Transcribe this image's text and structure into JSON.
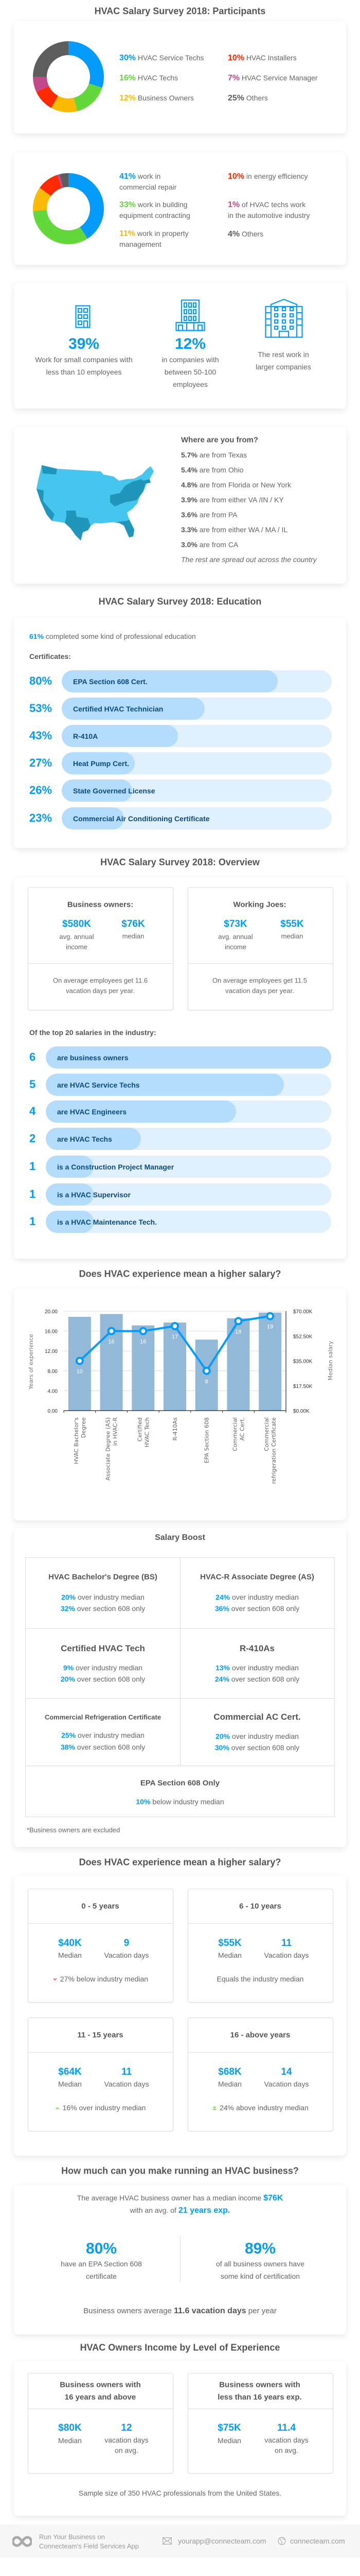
{
  "colors": {
    "blue": "#039cfd",
    "green": "#62d83b",
    "yellow": "#fbbb05",
    "red": "#ff2a00",
    "magenta": "#c2498a",
    "gray": "#5d5d5d",
    "map_light": "#45c6ef",
    "map_dark": "#2096ba",
    "bar_fill": "#b3dcfd",
    "bar_track": "#e0f0fe"
  },
  "participants": {
    "title": "HVAC Salary Survey 2018: Participants",
    "roles": [
      {
        "pct": "30%",
        "label": "HVAC Service Techs",
        "value": 30,
        "color": "#039cfd"
      },
      {
        "pct": "16%",
        "label": "HVAC Techs",
        "value": 16,
        "color": "#62d83b"
      },
      {
        "pct": "12%",
        "label": "Business Owners",
        "value": 12,
        "color": "#fbbb05"
      },
      {
        "pct": "10%",
        "label": "HVAC Installers",
        "value": 10,
        "color": "#ff2a00"
      },
      {
        "pct": "7%",
        "label": "HVAC Service Manager",
        "value": 7,
        "color": "#c2498a"
      },
      {
        "pct": "25%",
        "label": "Others",
        "value": 25,
        "color": "#5d5d5d"
      }
    ],
    "industries": [
      {
        "pct": "41%",
        "line1": "work in",
        "line2": "commercial repair",
        "value": 41,
        "color": "#039cfd"
      },
      {
        "pct": "33%",
        "line1": "work in building",
        "line2": "equipment contracting",
        "value": 33,
        "color": "#62d83b"
      },
      {
        "pct": "11%",
        "line1": "work in property",
        "line2": "management",
        "value": 11,
        "color": "#fbbb05"
      },
      {
        "pct": "10%",
        "line1": "in energy efficiency",
        "line2": "",
        "value": 10,
        "color": "#ff2a00"
      },
      {
        "pct": "1%",
        "line1": "of HVAC techs work",
        "line2": "in the automotive industry",
        "value": 1,
        "color": "#c2498a"
      },
      {
        "pct": "4%",
        "line1": "Others",
        "line2": "",
        "value": 4,
        "color": "#5d5d5d"
      }
    ],
    "company_size": [
      {
        "pct": "39%",
        "line1": "Work for small companies with",
        "line2": "less than 10 employees",
        "line3": "",
        "icon": "small-building-icon"
      },
      {
        "pct": "12%",
        "line1": "in companies with",
        "line2": "between 50-100",
        "line3": "employees",
        "icon": "office-building-icon"
      },
      {
        "pct": "",
        "line1": "The rest work in",
        "line2": "larger companies",
        "line3": "",
        "icon": "large-building-icon"
      }
    ],
    "location": {
      "heading": "Where are you from?",
      "items": [
        {
          "pct": "5.7%",
          "text": "are from Texas"
        },
        {
          "pct": "5.4%",
          "text": "are from Ohio"
        },
        {
          "pct": "4.8%",
          "text": "are from Florida or New York"
        },
        {
          "pct": "3.9%",
          "text": "are from either VA /IN / KY"
        },
        {
          "pct": "3.6%",
          "text": "are from PA"
        },
        {
          "pct": "3.3%",
          "text": "are from either WA / MA / IL"
        },
        {
          "pct": "3.0%",
          "text": "are from CA"
        }
      ],
      "note": "The rest are spread out across the country"
    }
  },
  "education": {
    "title": "HVAC Salary Survey 2018: Education",
    "intro_pct": "61%",
    "intro_text": "completed some kind of professional education",
    "cert_heading": "Certificates:",
    "certificates": [
      {
        "pct": "80%",
        "label": "EPA Section 608 Cert."
      },
      {
        "pct": "53%",
        "label": "Certified HVAC Technician"
      },
      {
        "pct": "43%",
        "label": "R-410A"
      },
      {
        "pct": "27%",
        "label": "Heat Pump Cert."
      },
      {
        "pct": "26%",
        "label": "State Governed License"
      },
      {
        "pct": "23%",
        "label": "Commercial Air Conditioning Certificate"
      }
    ]
  },
  "overview": {
    "title": "HVAC Salary Survey 2018: Overview",
    "groups": [
      {
        "heading": "Business owners:",
        "avg": "$580K",
        "avg_label1": "avg. annual",
        "avg_label2": "income",
        "median": "$76K",
        "median_label": "median",
        "vac1": "On average employees get 11.6",
        "vac2": "vacation days per year."
      },
      {
        "heading": "Working Joes:",
        "avg": "$73K",
        "avg_label1": "avg. annual",
        "avg_label2": "income",
        "median": "$55K",
        "median_label": "median",
        "vac1": "On average employees get 11.5",
        "vac2": "vacation days per year."
      }
    ],
    "top20_heading": "Of the top 20 salaries in the industry:",
    "top20": [
      {
        "count": "6",
        "label": "are business owners"
      },
      {
        "count": "5",
        "label": "are HVAC Service Techs"
      },
      {
        "count": "4",
        "label": "are HVAC Engineers"
      },
      {
        "count": "2",
        "label": "are HVAC Techs"
      },
      {
        "count": "1",
        "label": "is a Construction Project Manager"
      },
      {
        "count": "1",
        "label": "is a HVAC Supervisor"
      },
      {
        "count": "1",
        "label": "is a HVAC Maintenance Tech."
      }
    ]
  },
  "chart_data": {
    "type": "bar",
    "title": "Does HVAC experience mean a higher salary?",
    "categories": [
      [
        "HVAC Bachelor's",
        "Degree"
      ],
      [
        "Associate Degree (AS)",
        "in HVAC-R"
      ],
      [
        "Certified",
        "HVAC Tech"
      ],
      [
        "R-410As"
      ],
      [
        "EPA Section 608"
      ],
      [
        "Commercial",
        "AC Cert."
      ],
      [
        "Commercial",
        "refrigeration Certificate"
      ]
    ],
    "series": [
      {
        "type": "bar",
        "axis": "right",
        "values_k": [
          66,
          68,
          60,
          62,
          50,
          65,
          69
        ],
        "color": "#93b9d9"
      },
      {
        "type": "line",
        "axis": "left",
        "values": [
          10,
          16,
          16,
          17,
          8,
          18,
          19
        ],
        "color": "#039cfd"
      }
    ],
    "ylabel_left": "Years of experience",
    "ylabel_right": "Median salary",
    "ylim_left": [
      0,
      20
    ],
    "ylim_right_k": [
      0,
      70
    ],
    "yticks_left": [
      "0.00",
      "4.00",
      "8.00",
      "12.00",
      "16.00",
      "20.00"
    ],
    "yticks_right": [
      "$0.00K",
      "$17.50K",
      "$35.00K",
      "$52.50K",
      "$70.00K"
    ],
    "grid": true
  },
  "salary_boost": {
    "title": "Salary Boost",
    "cells": [
      {
        "title": "HVAC Bachelor's Degree (BS)",
        "p1": "20%",
        "t1": "over industry median",
        "p2": "32%",
        "t2": "over section 608 only"
      },
      {
        "title": "HVAC-R Associate Degree (AS)",
        "p1": "24%",
        "t1": "over industry median",
        "p2": "36%",
        "t2": "over section 608 only"
      },
      {
        "title": "Certified HVAC Tech",
        "p1": "9%",
        "t1": "over industry median",
        "p2": "20%",
        "t2": "over section 608 only"
      },
      {
        "title": "R-410As",
        "p1": "13%",
        "t1": "over industry median",
        "p2": "24%",
        "t2": "over section 608 only"
      },
      {
        "title": "Commercial Refrigeration Certificate",
        "p1": "25%",
        "t1": "over industry median",
        "p2": "38%",
        "t2": "over section 608 only"
      },
      {
        "title": "Commercial AC Cert.",
        "p1": "20%",
        "t1": "over industry median",
        "p2": "30%",
        "t2": "over section 608 only"
      },
      {
        "title": "EPA Section 608 Only",
        "p1": "10%",
        "t1": "below industry median"
      }
    ],
    "footnote": "*Business owners are excluded"
  },
  "experience": {
    "title": "Does HVAC experience mean a higher salary?",
    "median_label": "Median",
    "vacation_label": "Vacation days",
    "groups": [
      {
        "range": "0 - 5 years",
        "median": "$40K",
        "vacation": "9",
        "note": "27% below industry median",
        "trend": "down"
      },
      {
        "range": "6 - 10 years",
        "median": "$55K",
        "vacation": "11",
        "note": "Equals the industry median",
        "trend": "none"
      },
      {
        "range": "11 - 15 years",
        "median": "$64K",
        "vacation": "11",
        "note": "16% over industry median",
        "trend": "up"
      },
      {
        "range": "16 - above years",
        "median": "$68K",
        "vacation": "14",
        "note": "24% above industry median",
        "trend": "double-up"
      }
    ]
  },
  "business": {
    "title": "How much can you make running an HVAC business?",
    "line1": "The average HVAC business owner has a median income",
    "income": "$76K",
    "line2": "with an avg. of",
    "years": "21 years exp.",
    "stats": [
      {
        "pct": "80%",
        "line1": "have an EPA Section 608",
        "line2": "certificate"
      },
      {
        "pct": "89%",
        "line1": "of all business owners have",
        "line2": "some kind of certification"
      }
    ],
    "vac_pre": "Business owners average",
    "vac_bold": "11.6 vacation days",
    "vac_post": "per year"
  },
  "owners": {
    "title": "HVAC Owners Income by Level of Experience",
    "groups": [
      {
        "h1": "Business owners with",
        "h2": "16 years and above",
        "median": "$80K",
        "median_label": "Median",
        "vacation": "12",
        "vac1": "vacation days",
        "vac2": "on avg."
      },
      {
        "h1": "Business owners with",
        "h2": "less than 16 years exp.",
        "median": "$75K",
        "median_label": "Median",
        "vacation": "11.4",
        "vac1": "vacation days",
        "vac2": "on avg."
      }
    ],
    "sample": "Sample size of 350 HVAC professionals from the United States."
  },
  "footer": {
    "tagline1": "Run Your Business on",
    "tagline2": "Connecteam's Field Services App",
    "email": "yourapp@connecteam.com",
    "website": "connecteam.com"
  }
}
